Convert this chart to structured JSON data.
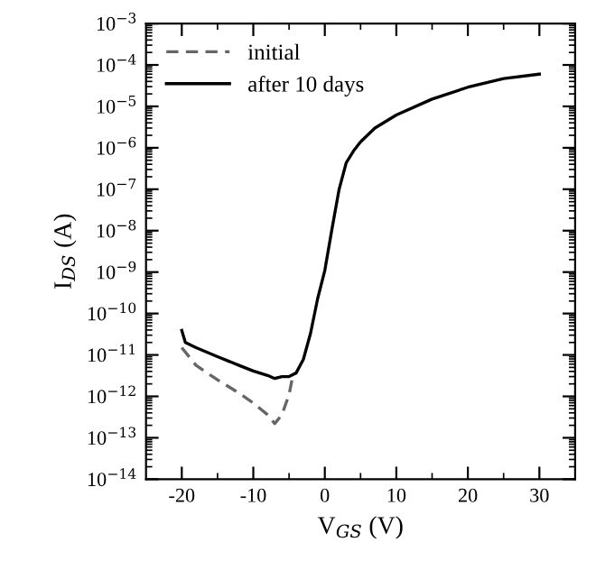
{
  "chart_data": {
    "type": "line",
    "xlabel": "V$_{GS}$ (V)",
    "ylabel": "I$_{DS}$ (A)",
    "log": "y",
    "xlim": [
      -25,
      35
    ],
    "ylim": [
      1e-14,
      0.001
    ],
    "xticks": [
      -20,
      {
        "value": -15,
        "label": null
      },
      -10,
      {
        "value": -5,
        "label": null
      },
      0,
      {
        "value": 5,
        "label": null
      },
      10,
      {
        "value": 15,
        "label": null
      },
      20,
      {
        "value": 25,
        "label": null
      },
      30
    ],
    "yticks": [
      {
        "value": 1e-14,
        "label": "10$^{−14}$"
      },
      {
        "value": 1e-13,
        "label": "10$^{−13}$"
      },
      {
        "value": 1e-12,
        "label": "10$^{−12}$"
      },
      {
        "value": 1e-11,
        "label": "10$^{−11}$"
      },
      {
        "value": 1e-10,
        "label": "10$^{−10}$"
      },
      {
        "value": 1e-09,
        "label": "10$^{−9}$"
      },
      {
        "value": 1e-08,
        "label": "10$^{−8}$"
      },
      {
        "value": 1e-07,
        "label": "10$^{−7}$"
      },
      {
        "value": 1e-06,
        "label": "10$^{−6}$"
      },
      {
        "value": 1e-05,
        "label": "10$^{−5}$"
      },
      {
        "value": 0.0001,
        "label": "10$^{−4}$"
      },
      {
        "value": 0.001,
        "label": "10$^{−3}$"
      }
    ],
    "grid": false,
    "legend": "top left",
    "marker": "none",
    "series": [
      {
        "name": "initial",
        "color": "#666666",
        "line_style": "dashed",
        "x": [
          -20,
          -18,
          -15,
          -12,
          -10,
          -8,
          -7,
          -6,
          -5,
          -4.5,
          -4
        ],
        "values": [
          1.5e-11,
          5.6e-12,
          2.5e-12,
          1.2e-12,
          6.9e-13,
          3.6e-13,
          2.2e-13,
          3.6e-13,
          1.1e-12,
          3e-12,
          3.7e-12
        ]
      },
      {
        "name": "after 10 days",
        "color": "#000000",
        "line_style": "solid",
        "x": [
          -20,
          -19.5,
          -18,
          -15,
          -12,
          -10,
          -8,
          -7,
          -6,
          -5,
          -4,
          -3,
          -2,
          -1,
          0,
          1,
          2,
          3,
          4,
          5,
          7,
          10,
          15,
          20,
          25,
          30
        ],
        "values": [
          3.9e-11,
          2e-11,
          1.5e-11,
          9.1e-12,
          5.6e-12,
          4.1e-12,
          3.2e-12,
          2.7e-12,
          3e-12,
          3e-12,
          3.7e-12,
          7.8e-12,
          3.3e-11,
          2.3e-10,
          1.1e-09,
          1.1e-08,
          1e-07,
          4.4e-07,
          8.3e-07,
          1.4e-06,
          3e-06,
          6.2e-06,
          1.5e-05,
          2.9e-05,
          4.7e-05,
          6e-05
        ]
      }
    ]
  }
}
